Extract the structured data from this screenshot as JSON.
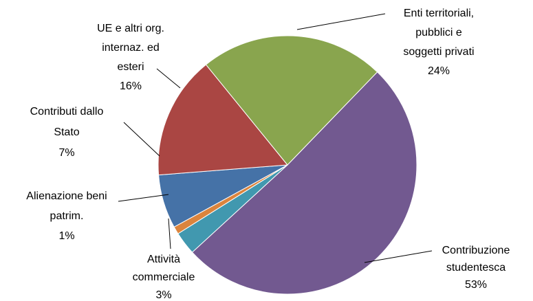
{
  "chart_data": {
    "type": "pie",
    "categories": [
      [
        "Contribuzione",
        "studentesca"
      ],
      [
        "Attività",
        "commerciale"
      ],
      [
        "Alienazione beni",
        "patrim."
      ],
      [
        "Contributi dallo",
        "Stato"
      ],
      [
        "UE e altri org.",
        "internaz. ed",
        "esteri"
      ],
      [
        "Enti territoriali,",
        "pubblici e",
        "soggetti privati"
      ]
    ],
    "values": [
      53,
      3,
      1,
      7,
      16,
      24
    ],
    "value_labels": [
      "53%",
      "3%",
      "1%",
      "7%",
      "16%",
      "24%"
    ],
    "colors": [
      "#725990",
      "#4198AF",
      "#DB843D",
      "#4572A7",
      "#AA4643",
      "#89A54E"
    ]
  }
}
